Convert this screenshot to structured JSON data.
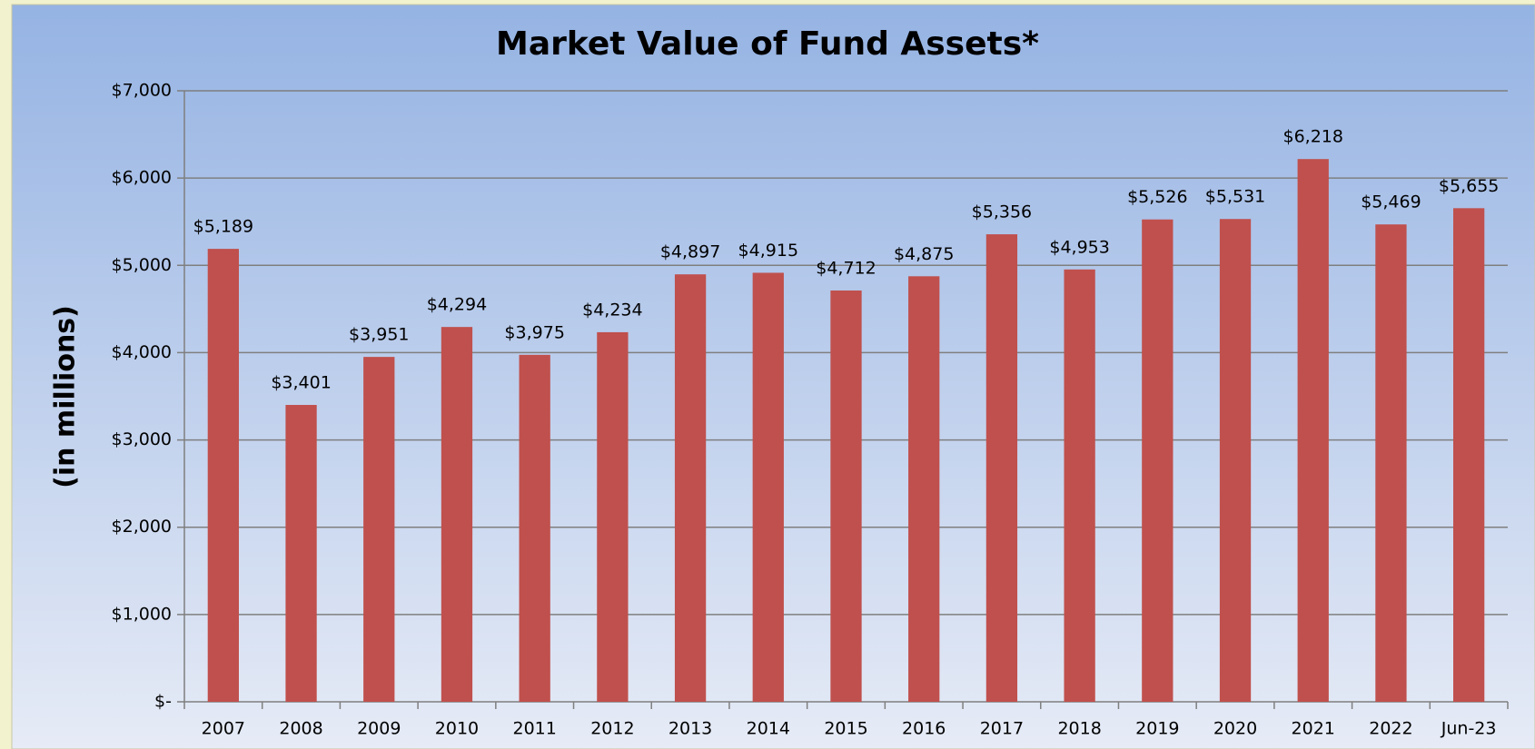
{
  "chart_data": {
    "type": "bar",
    "title": "Market Value of Fund Assets*",
    "y_label": "(in millions)",
    "categories": [
      "2007",
      "2008",
      "2009",
      "2010",
      "2011",
      "2012",
      "2013",
      "2014",
      "2015",
      "2016",
      "2017",
      "2018",
      "2019",
      "2020",
      "2021",
      "2022",
      "Jun-23"
    ],
    "values": [
      5189,
      3401,
      3951,
      4294,
      3975,
      4234,
      4897,
      4915,
      4712,
      4875,
      5356,
      4953,
      5526,
      5531,
      6218,
      5469,
      5655
    ],
    "value_labels": [
      "$5,189",
      "$3,401",
      "$3,951",
      "$4,294",
      "$3,975",
      "$4,234",
      "$4,897",
      "$4,915",
      "$4,712",
      "$4,875",
      "$5,356",
      "$4,953",
      "$5,526",
      "$5,531",
      "$6,218",
      "$5,469",
      "$5,655"
    ],
    "color": "#c0504d",
    "ylim": [
      0,
      7000
    ],
    "yticks": [
      {
        "value": 0,
        "label": "$-"
      },
      {
        "value": 1000,
        "label": "$1,000"
      },
      {
        "value": 2000,
        "label": "$2,000"
      },
      {
        "value": 3000,
        "label": "$3,000"
      },
      {
        "value": 4000,
        "label": "$4,000"
      },
      {
        "value": 5000,
        "label": "$5,000"
      },
      {
        "value": 6000,
        "label": "$6,000"
      },
      {
        "value": 7000,
        "label": "$7,000"
      }
    ],
    "grid": true
  }
}
